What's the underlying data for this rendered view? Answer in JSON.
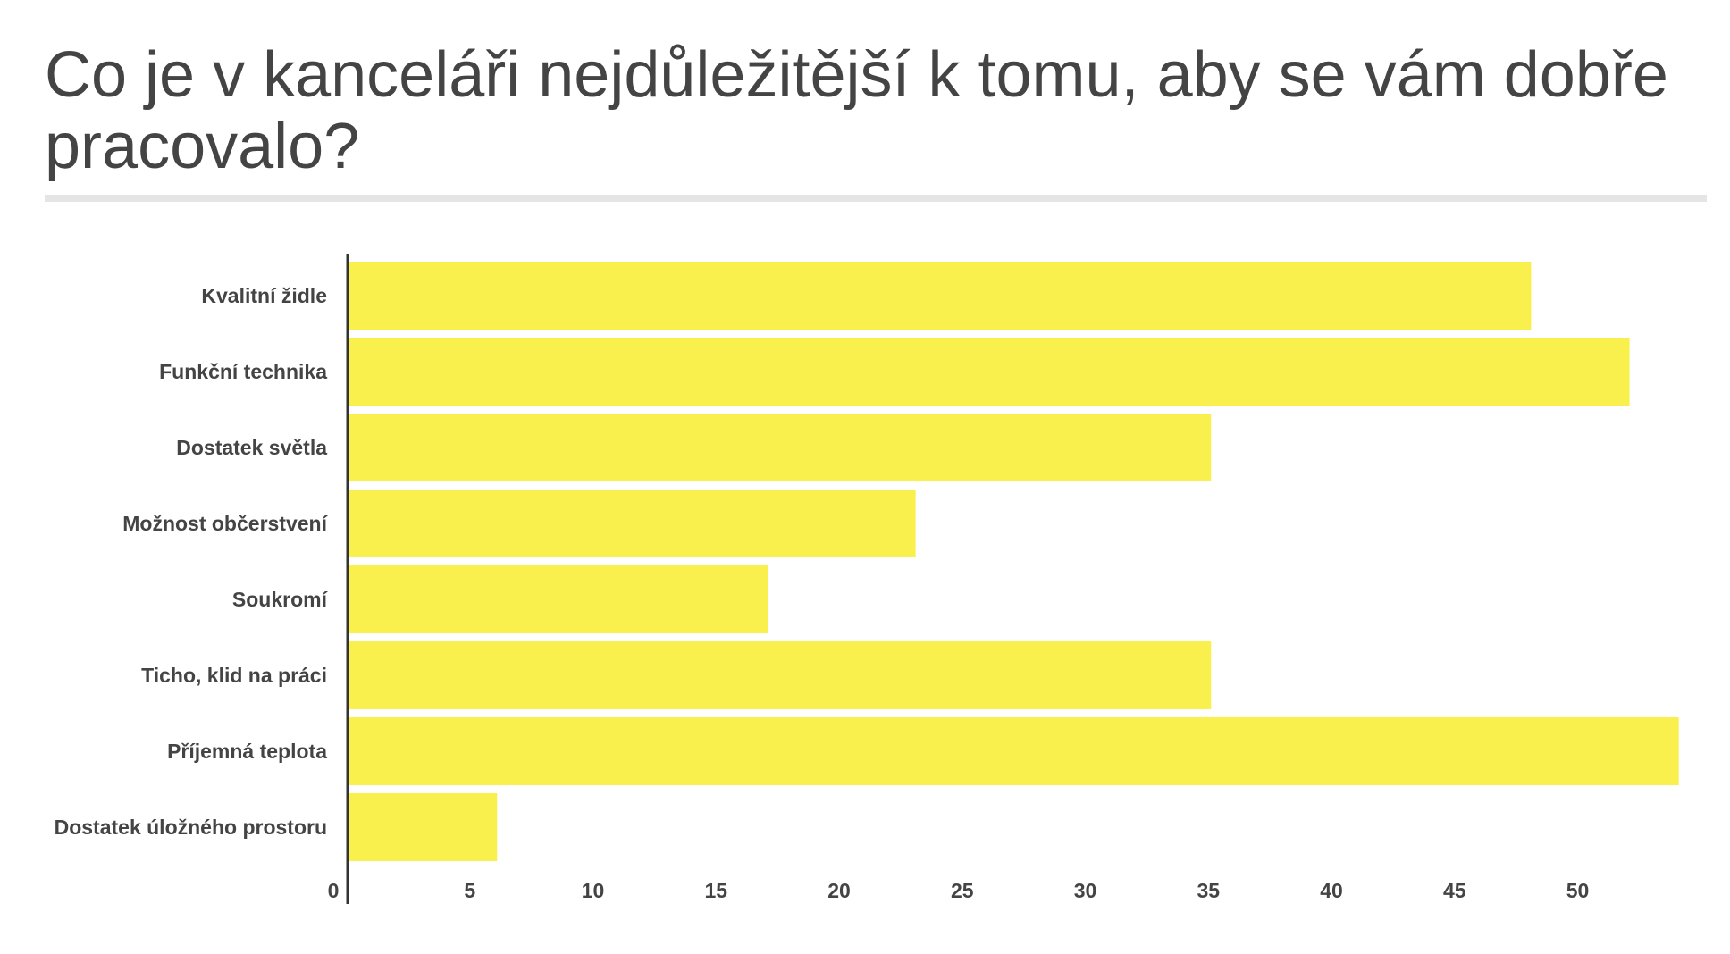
{
  "title": "Co je v kanceláři nejdůležitější k tomu, aby se vám dobře pracovalo?",
  "chart_data": {
    "type": "bar",
    "orientation": "horizontal",
    "title": "Co je v kanceláři nejdůležitější k tomu, aby se vám dobře pracovalo?",
    "categories": [
      "Kvalitní židle",
      "Funkční technika",
      "Dostatek světla",
      "Možnost občerstvení",
      "Soukromí",
      "Ticho, klid na práci",
      "Příjemná teplota",
      "Dostatek úložného prostoru"
    ],
    "values": [
      48,
      52,
      35,
      23,
      17,
      35,
      54,
      6
    ],
    "xticks": [
      0,
      5,
      10,
      15,
      20,
      25,
      30,
      35,
      40,
      45,
      50
    ],
    "xlim": [
      0,
      54
    ],
    "bar_color": "#f9f04e",
    "text_color": "#444444",
    "axis_color": "#333333",
    "grid": false,
    "legend": "none"
  }
}
